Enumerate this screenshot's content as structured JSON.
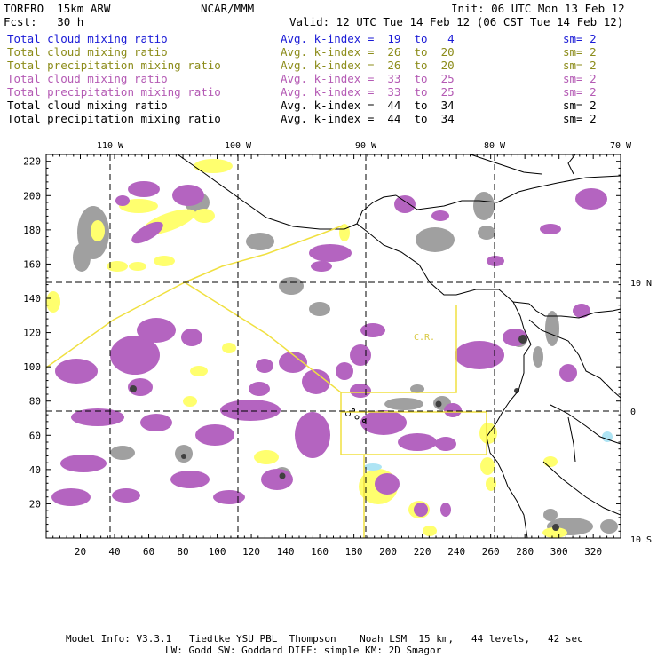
{
  "header": {
    "model": "TORERO  15km ARW",
    "org": "NCAR/MMM",
    "init": "Init: 06 UTC Mon 13 Feb 12",
    "fcst": "Fcst:   30 h",
    "valid": "Valid: 12 UTC Tue 14 Feb 12 (06 CST Tue 14 Feb 12)"
  },
  "legend": [
    {
      "field": "Total cloud mixing ratio",
      "kindex": "Avg. k-index =  19  to   4",
      "sm": "sm= 2",
      "color": "#1a1ad6"
    },
    {
      "field": "Total cloud mixing ratio",
      "kindex": "Avg. k-index =  26  to  20",
      "sm": "sm= 2",
      "color": "#8c8c1a"
    },
    {
      "field": "Total precipitation mixing ratio",
      "kindex": "Avg. k-index =  26  to  20",
      "sm": "sm= 2",
      "color": "#8c8c1a"
    },
    {
      "field": "Total cloud mixing ratio",
      "kindex": "Avg. k-index =  33  to  25",
      "sm": "sm= 2",
      "color": "#b45ab4"
    },
    {
      "field": "Total precipitation mixing ratio",
      "kindex": "Avg. k-index =  33  to  25",
      "sm": "sm= 2",
      "color": "#b45ab4"
    },
    {
      "field": "Total cloud mixing ratio",
      "kindex": "Avg. k-index =  44  to  34",
      "sm": "sm= 2",
      "color": "#000000"
    },
    {
      "field": "Total precipitation mixing ratio",
      "kindex": "Avg. k-index =  44  to  34",
      "sm": "sm= 2",
      "color": "#000000"
    }
  ],
  "map": {
    "lon_labels": [
      "110 W",
      "100 W",
      "90 W",
      "80 W",
      "70 W"
    ],
    "lat_labels": [
      "10 N",
      "0",
      "10 S"
    ],
    "x_ticks": [
      "20",
      "40",
      "60",
      "80",
      "100",
      "120",
      "140",
      "160",
      "180",
      "200",
      "220",
      "240",
      "260",
      "280",
      "300",
      "320"
    ],
    "y_ticks": [
      "220",
      "200",
      "180",
      "160",
      "140",
      "120",
      "100",
      "80",
      "60",
      "40",
      "20"
    ],
    "annotation": "C.R.",
    "colors": {
      "gray": "#a0a0a0",
      "purple": "#b464c0",
      "yellow": "#ffff6e",
      "coast": "#000000",
      "box": "#f0e040",
      "grid": "#000000",
      "light_blue": "#aee4f4"
    }
  },
  "footer": {
    "line1": "Model Info: V3.3.1   Tiedtke YSU PBL  Thompson    Noah LSM  15 km,   44 levels,   42 sec",
    "line2": "LW: Godd SW: Goddard DIFF: simple KM: 2D Smagor"
  }
}
